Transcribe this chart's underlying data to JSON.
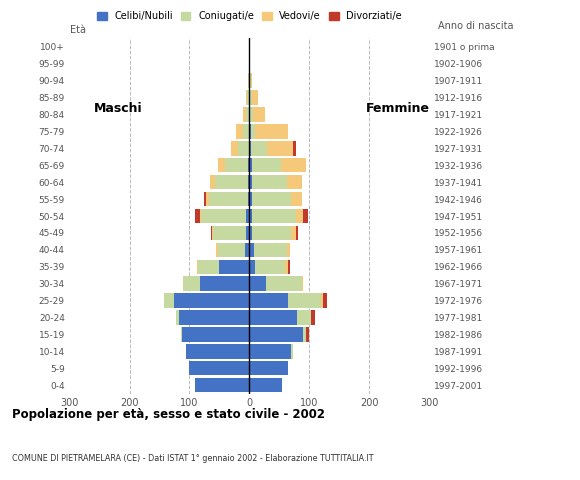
{
  "age_groups": [
    "0-4",
    "5-9",
    "10-14",
    "15-19",
    "20-24",
    "25-29",
    "30-34",
    "35-39",
    "40-44",
    "45-49",
    "50-54",
    "55-59",
    "60-64",
    "65-69",
    "70-74",
    "75-79",
    "80-84",
    "85-89",
    "90-94",
    "95-99",
    "100+"
  ],
  "birth_years": [
    "1997-2001",
    "1992-1996",
    "1987-1991",
    "1982-1986",
    "1977-1981",
    "1972-1976",
    "1967-1971",
    "1962-1966",
    "1957-1961",
    "1952-1956",
    "1947-1951",
    "1942-1946",
    "1937-1941",
    "1932-1936",
    "1927-1931",
    "1922-1926",
    "1917-1921",
    "1912-1916",
    "1907-1911",
    "1902-1906",
    "1901 o prima"
  ],
  "males_celibe": [
    90,
    100,
    105,
    112,
    118,
    125,
    82,
    50,
    8,
    5,
    5,
    3,
    2,
    2,
    1,
    1,
    0,
    0,
    0,
    0,
    0
  ],
  "males_coniugato": [
    0,
    0,
    0,
    2,
    5,
    18,
    28,
    35,
    45,
    55,
    75,
    65,
    55,
    38,
    18,
    9,
    5,
    4,
    2,
    1,
    0
  ],
  "males_vedovo": [
    0,
    0,
    0,
    0,
    0,
    0,
    0,
    2,
    2,
    2,
    2,
    5,
    8,
    12,
    12,
    12,
    5,
    2,
    1,
    0,
    0
  ],
  "males_divorziato": [
    0,
    0,
    0,
    0,
    0,
    0,
    0,
    0,
    0,
    2,
    8,
    3,
    0,
    0,
    0,
    0,
    0,
    0,
    0,
    0,
    0
  ],
  "females_nubile": [
    55,
    65,
    70,
    90,
    80,
    65,
    28,
    10,
    8,
    5,
    5,
    4,
    4,
    4,
    2,
    2,
    1,
    1,
    1,
    0,
    0
  ],
  "females_coniugata": [
    0,
    0,
    2,
    5,
    22,
    55,
    60,
    50,
    55,
    65,
    72,
    65,
    58,
    48,
    28,
    8,
    5,
    3,
    1,
    0,
    0
  ],
  "females_vedova": [
    0,
    0,
    0,
    0,
    0,
    2,
    2,
    5,
    5,
    8,
    12,
    18,
    25,
    42,
    42,
    55,
    20,
    10,
    3,
    1,
    0
  ],
  "females_divorziata": [
    0,
    0,
    0,
    5,
    8,
    8,
    0,
    2,
    0,
    3,
    8,
    0,
    0,
    0,
    5,
    0,
    0,
    0,
    0,
    0,
    0
  ],
  "colors": {
    "celibe": "#4472c4",
    "coniugato": "#c5d9a0",
    "vedovo": "#f5c87a",
    "divorziato": "#c0392b"
  },
  "title": "Popolazione per età, sesso e stato civile - 2002",
  "subtitle": "COMUNE DI PIETRAMELARA (CE) - Dati ISTAT 1° gennaio 2002 - Elaborazione TUTTITALIA.IT",
  "label_maschi": "Maschi",
  "label_femmine": "Femmine",
  "label_eta": "Età",
  "label_anno": "Anno di nascita",
  "legend_labels": [
    "Celibi/Nubili",
    "Coniugati/e",
    "Vedovi/e",
    "Divorziati/e"
  ],
  "xlim": 300,
  "bg_color": "#ffffff",
  "grid_color": "#bbbbbb"
}
